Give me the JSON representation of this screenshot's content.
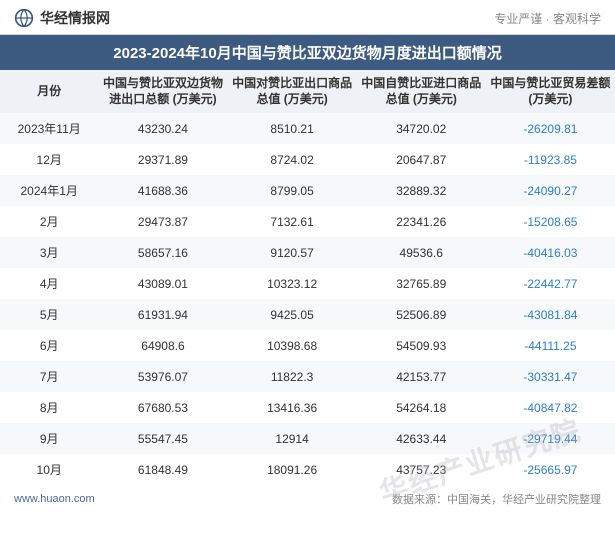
{
  "header": {
    "logo_text": "华经情报网",
    "tagline": "专业严谨 · 客观科学"
  },
  "title": "2023-2024年10月中国与赞比亚双边货物月度进出口额情况",
  "columns": [
    "月份",
    "中国与赞比亚双边货物进出口总额\n(万美元)",
    "中国对赞比亚出口商品总值\n(万美元)",
    "中国自赞比亚进口商品总值\n(万美元)",
    "中国与赞比亚贸易差额\n(万美元)"
  ],
  "rows": [
    {
      "month": "2023年11月",
      "total": "43230.24",
      "export": "8510.21",
      "import": "34720.02",
      "balance": "-26209.81"
    },
    {
      "month": "12月",
      "total": "29371.89",
      "export": "8724.02",
      "import": "20647.87",
      "balance": "-11923.85"
    },
    {
      "month": "2024年1月",
      "total": "41688.36",
      "export": "8799.05",
      "import": "32889.32",
      "balance": "-24090.27"
    },
    {
      "month": "2月",
      "total": "29473.87",
      "export": "7132.61",
      "import": "22341.26",
      "balance": "-15208.65"
    },
    {
      "month": "3月",
      "total": "58657.16",
      "export": "9120.57",
      "import": "49536.6",
      "balance": "-40416.03"
    },
    {
      "month": "4月",
      "total": "43089.01",
      "export": "10323.12",
      "import": "32765.89",
      "balance": "-22442.77"
    },
    {
      "month": "5月",
      "total": "61931.94",
      "export": "9425.05",
      "import": "52506.89",
      "balance": "-43081.84"
    },
    {
      "month": "6月",
      "total": "64908.6",
      "export": "10398.68",
      "import": "54509.93",
      "balance": "-44111.25"
    },
    {
      "month": "7月",
      "total": "53976.07",
      "export": "11822.3",
      "import": "42153.77",
      "balance": "-30331.47"
    },
    {
      "month": "8月",
      "total": "67680.53",
      "export": "13416.36",
      "import": "54264.18",
      "balance": "-40847.82"
    },
    {
      "month": "9月",
      "total": "55547.45",
      "export": "12914",
      "import": "42633.44",
      "balance": "-29719.44"
    },
    {
      "month": "10月",
      "total": "61848.49",
      "export": "18091.26",
      "import": "43757.23",
      "balance": "-25665.97"
    }
  ],
  "footer": {
    "url": "www.huaon.com",
    "source": "数据来源：中国海关，华经产业研究院整理"
  },
  "watermark": "华经产业研究院",
  "colors": {
    "title_bg": "#3d5a80",
    "header_row_bg": "#eef1f5",
    "odd_row_bg": "#f7f8fa",
    "even_row_bg": "#ffffff",
    "negative_text": "#2b7fc9",
    "footer_url": "#4a6a9a",
    "footer_source": "#888888"
  }
}
